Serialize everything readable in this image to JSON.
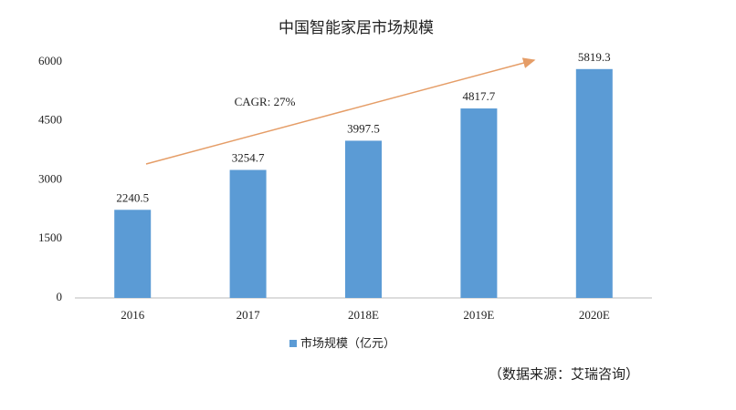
{
  "chart_data": {
    "type": "bar",
    "title": "中国智能家居市场规模",
    "categories": [
      "2016",
      "2017",
      "2018E",
      "2019E",
      "2020E"
    ],
    "series": [
      {
        "name": "市场规模（亿元）",
        "color": "#5b9bd5",
        "values": [
          2240.5,
          3254.7,
          3997.5,
          4817.7,
          5819.3
        ]
      }
    ],
    "ylim": [
      0,
      6000
    ],
    "yticks": [
      0,
      1500,
      3000,
      4500,
      6000
    ],
    "grid": false,
    "annotations": [
      "CAGR: 27%"
    ],
    "source": "（数据来源：艾瑞咨询）"
  }
}
